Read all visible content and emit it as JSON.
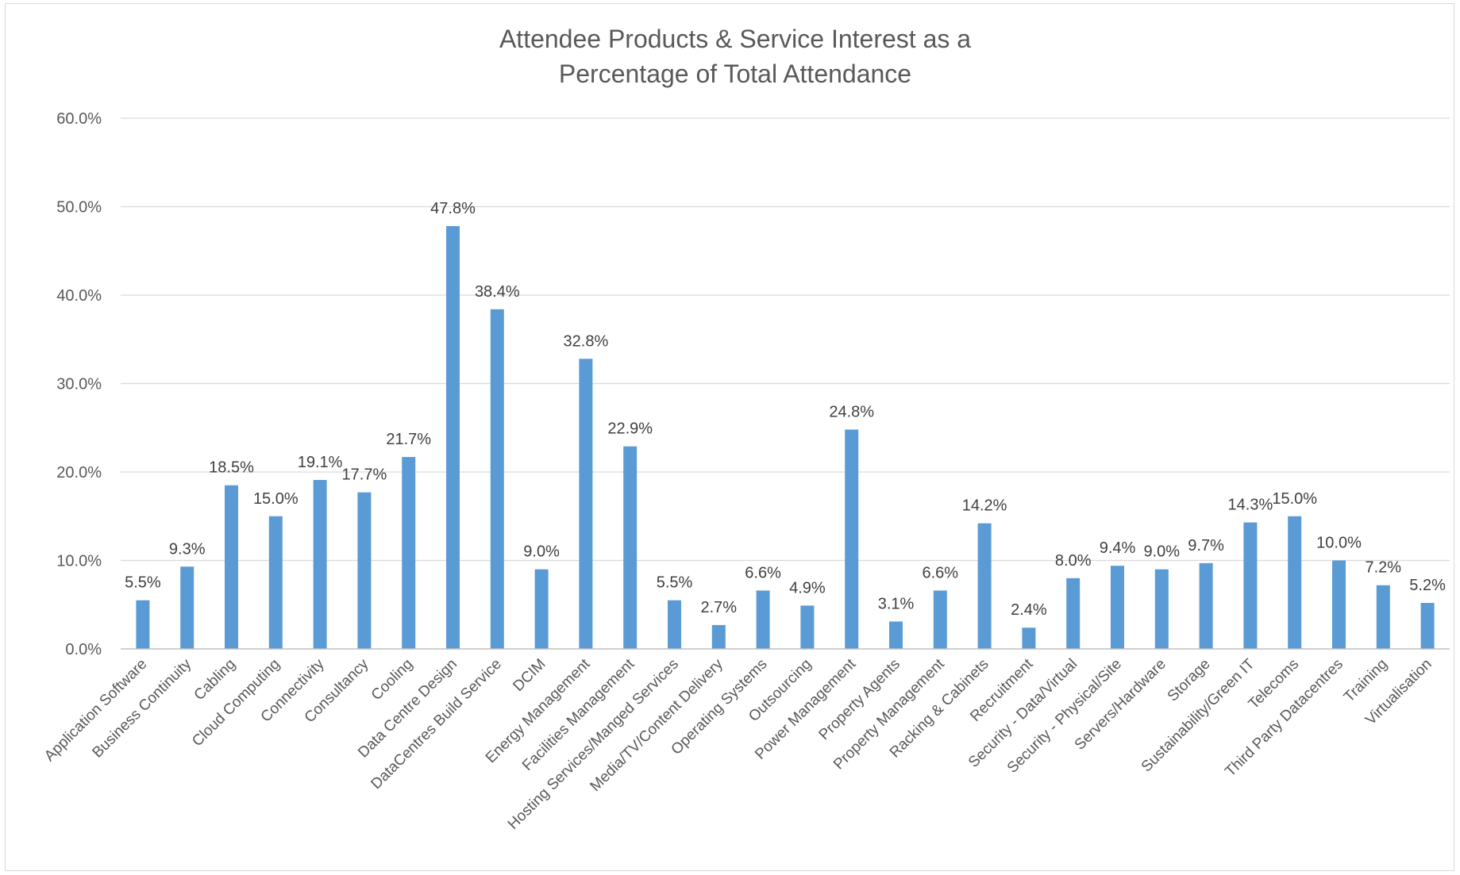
{
  "chart_data": {
    "type": "bar",
    "title_lines": [
      "Attendee Products & Service Interest as a",
      "Percentage of Total Attendance"
    ],
    "categories": [
      "Application Software",
      "Business Continuity",
      "Cabling",
      "Cloud Computing",
      "Connectivity",
      "Consultancy",
      "Cooling",
      "Data Centre Design",
      "DataCentres Build Service",
      "DCIM",
      "Energy Management",
      "Facilities Management",
      "Hosting Services/Manged Services",
      "Media/TV/Content Delivery",
      "Operating Systems",
      "Outsourcing",
      "Power Management",
      "Property Agents",
      "Property Management",
      "Racking & Cabinets",
      "Recruitment",
      "Security - Data/Virtual",
      "Security - Physical/Site",
      "Servers/Hardware",
      "Storage",
      "Sustainability/Green IT",
      "Telecoms",
      "Third Party Datacentres",
      "Training",
      "Virtualisation"
    ],
    "values": [
      5.5,
      9.3,
      18.5,
      15.0,
      19.1,
      17.7,
      21.7,
      47.8,
      38.4,
      9.0,
      32.8,
      22.9,
      5.5,
      2.7,
      6.6,
      4.9,
      24.8,
      3.1,
      6.6,
      14.2,
      2.4,
      8.0,
      9.4,
      9.0,
      9.7,
      14.3,
      15.0,
      10.0,
      7.2,
      5.2
    ],
    "data_labels": [
      "5.5%",
      "9.3%",
      "18.5%",
      "15.0%",
      "19.1%",
      "17.7%",
      "21.7%",
      "47.8%",
      "38.4%",
      "9.0%",
      "32.8%",
      "22.9%",
      "5.5%",
      "2.7%",
      "6.6%",
      "4.9%",
      "24.8%",
      "3.1%",
      "6.6%",
      "14.2%",
      "2.4%",
      "8.0%",
      "9.4%",
      "9.0%",
      "9.7%",
      "14.3%",
      "15.0%",
      "10.0%",
      "7.2%",
      "5.2%"
    ],
    "y_ticks": [
      "0.0%",
      "10.0%",
      "20.0%",
      "30.0%",
      "40.0%",
      "50.0%",
      "60.0%"
    ],
    "ylim": [
      0,
      60
    ],
    "grid": true,
    "legend": false,
    "bar_color": "#5b9bd5"
  }
}
